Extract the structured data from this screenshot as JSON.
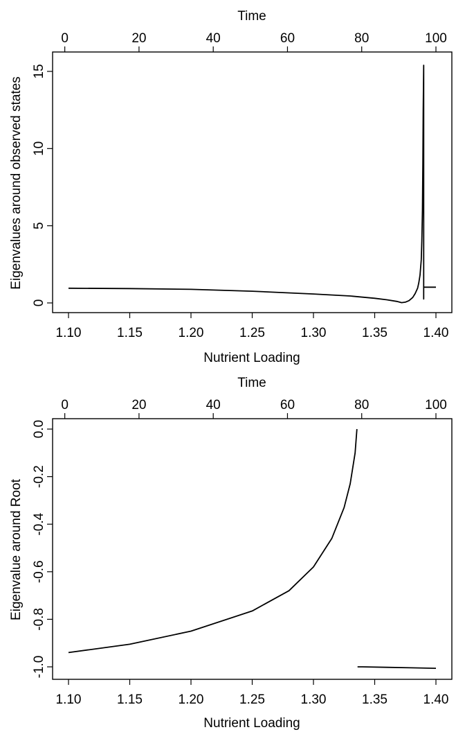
{
  "chart_data": [
    {
      "type": "line",
      "xlabel": "Nutrient Loading",
      "ylabel": "Eigenvalues around observed states",
      "top_axis_label": "Time",
      "xlim": [
        1.1,
        1.4
      ],
      "ylim": [
        0,
        15
      ],
      "top_lim": [
        1,
        100
      ],
      "x_ticks": [
        1.1,
        1.15,
        1.2,
        1.25,
        1.3,
        1.35,
        1.4
      ],
      "x_tick_labels": [
        "1.10",
        "1.15",
        "1.20",
        "1.25",
        "1.30",
        "1.35",
        "1.40"
      ],
      "y_ticks": [
        0,
        5,
        10,
        15
      ],
      "y_tick_labels": [
        "0",
        "5",
        "10",
        "15"
      ],
      "top_ticks": [
        0,
        20,
        40,
        60,
        80,
        100
      ],
      "top_tick_labels": [
        "0",
        "20",
        "40",
        "60",
        "80",
        "100"
      ],
      "grid": false,
      "series": [
        {
          "x": [
            1.1,
            1.15,
            1.2,
            1.25,
            1.3,
            1.33,
            1.35,
            1.36,
            1.368,
            1.372,
            1.375,
            1.378,
            1.381,
            1.383,
            1.385,
            1.386,
            1.387,
            1.388,
            1.3885,
            1.389,
            1.3893,
            1.3896,
            1.39,
            1.39,
            1.39,
            1.3905,
            1.4
          ],
          "y": [
            0.95,
            0.93,
            0.88,
            0.76,
            0.58,
            0.45,
            0.3,
            0.2,
            0.1,
            0.02,
            0.05,
            0.15,
            0.35,
            0.6,
            0.95,
            1.3,
            1.8,
            2.8,
            4.0,
            6.0,
            9.0,
            12.5,
            15.4,
            0.25,
            1.0,
            1.02,
            1.02
          ]
        }
      ]
    },
    {
      "type": "line",
      "xlabel": "Nutrient Loading",
      "ylabel": "Eigenvalue around Root",
      "top_axis_label": "Time",
      "xlim": [
        1.1,
        1.4
      ],
      "ylim": [
        -1.0,
        0.0
      ],
      "top_lim": [
        1,
        100
      ],
      "x_ticks": [
        1.1,
        1.15,
        1.2,
        1.25,
        1.3,
        1.35,
        1.4
      ],
      "x_tick_labels": [
        "1.10",
        "1.15",
        "1.20",
        "1.25",
        "1.30",
        "1.35",
        "1.40"
      ],
      "y_ticks": [
        0.0,
        -0.2,
        -0.4,
        -0.6,
        -0.8,
        -1.0
      ],
      "y_tick_labels": [
        "0.0",
        "-0.2",
        "-0.4",
        "-0.6",
        "-0.8",
        "-1.0"
      ],
      "top_ticks": [
        0,
        20,
        40,
        60,
        80,
        100
      ],
      "top_tick_labels": [
        "0",
        "20",
        "40",
        "60",
        "80",
        "100"
      ],
      "grid": false,
      "series": [
        {
          "x": [
            1.1,
            1.15,
            1.2,
            1.25,
            1.28,
            1.3,
            1.315,
            1.325,
            1.33,
            1.334,
            1.3355
          ],
          "y": [
            -0.94,
            -0.905,
            -0.85,
            -0.765,
            -0.68,
            -0.58,
            -0.46,
            -0.33,
            -0.23,
            -0.1,
            0.0
          ]
        },
        {
          "x": [
            1.336,
            1.34,
            1.36,
            1.38,
            1.4
          ],
          "y": [
            -1.0,
            -1.0,
            -1.002,
            -1.004,
            -1.006
          ]
        }
      ]
    }
  ]
}
